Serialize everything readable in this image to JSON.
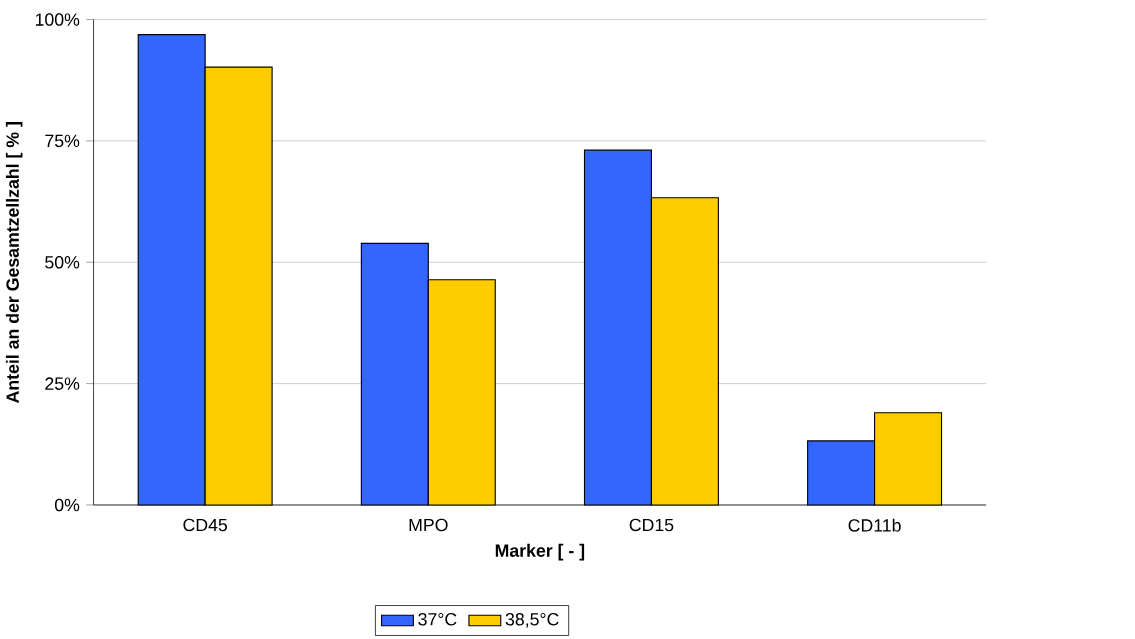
{
  "chart_data": {
    "type": "bar",
    "xlabel": "Marker [ - ]",
    "ylabel": "Anteil an der Gesamtzellzahl [ % ]",
    "categories": [
      "CD45",
      "MPO",
      "CD15",
      "CD11b"
    ],
    "series": [
      {
        "name": "37°C",
        "color": "#3366ff",
        "values": [
          96.9,
          53.9,
          73.1,
          13.2
        ]
      },
      {
        "name": "38,5°C",
        "color": "#ffcc00",
        "values": [
          90.2,
          46.4,
          63.3,
          19.0
        ]
      }
    ],
    "ylim": [
      0,
      100
    ],
    "yticks": [
      {
        "value": 0,
        "label": "0%"
      },
      {
        "value": 25,
        "label": "25%"
      },
      {
        "value": 50,
        "label": "50%"
      },
      {
        "value": 75,
        "label": "75%"
      },
      {
        "value": 100,
        "label": "100%"
      }
    ],
    "grid": "y",
    "legend": "bottom"
  }
}
